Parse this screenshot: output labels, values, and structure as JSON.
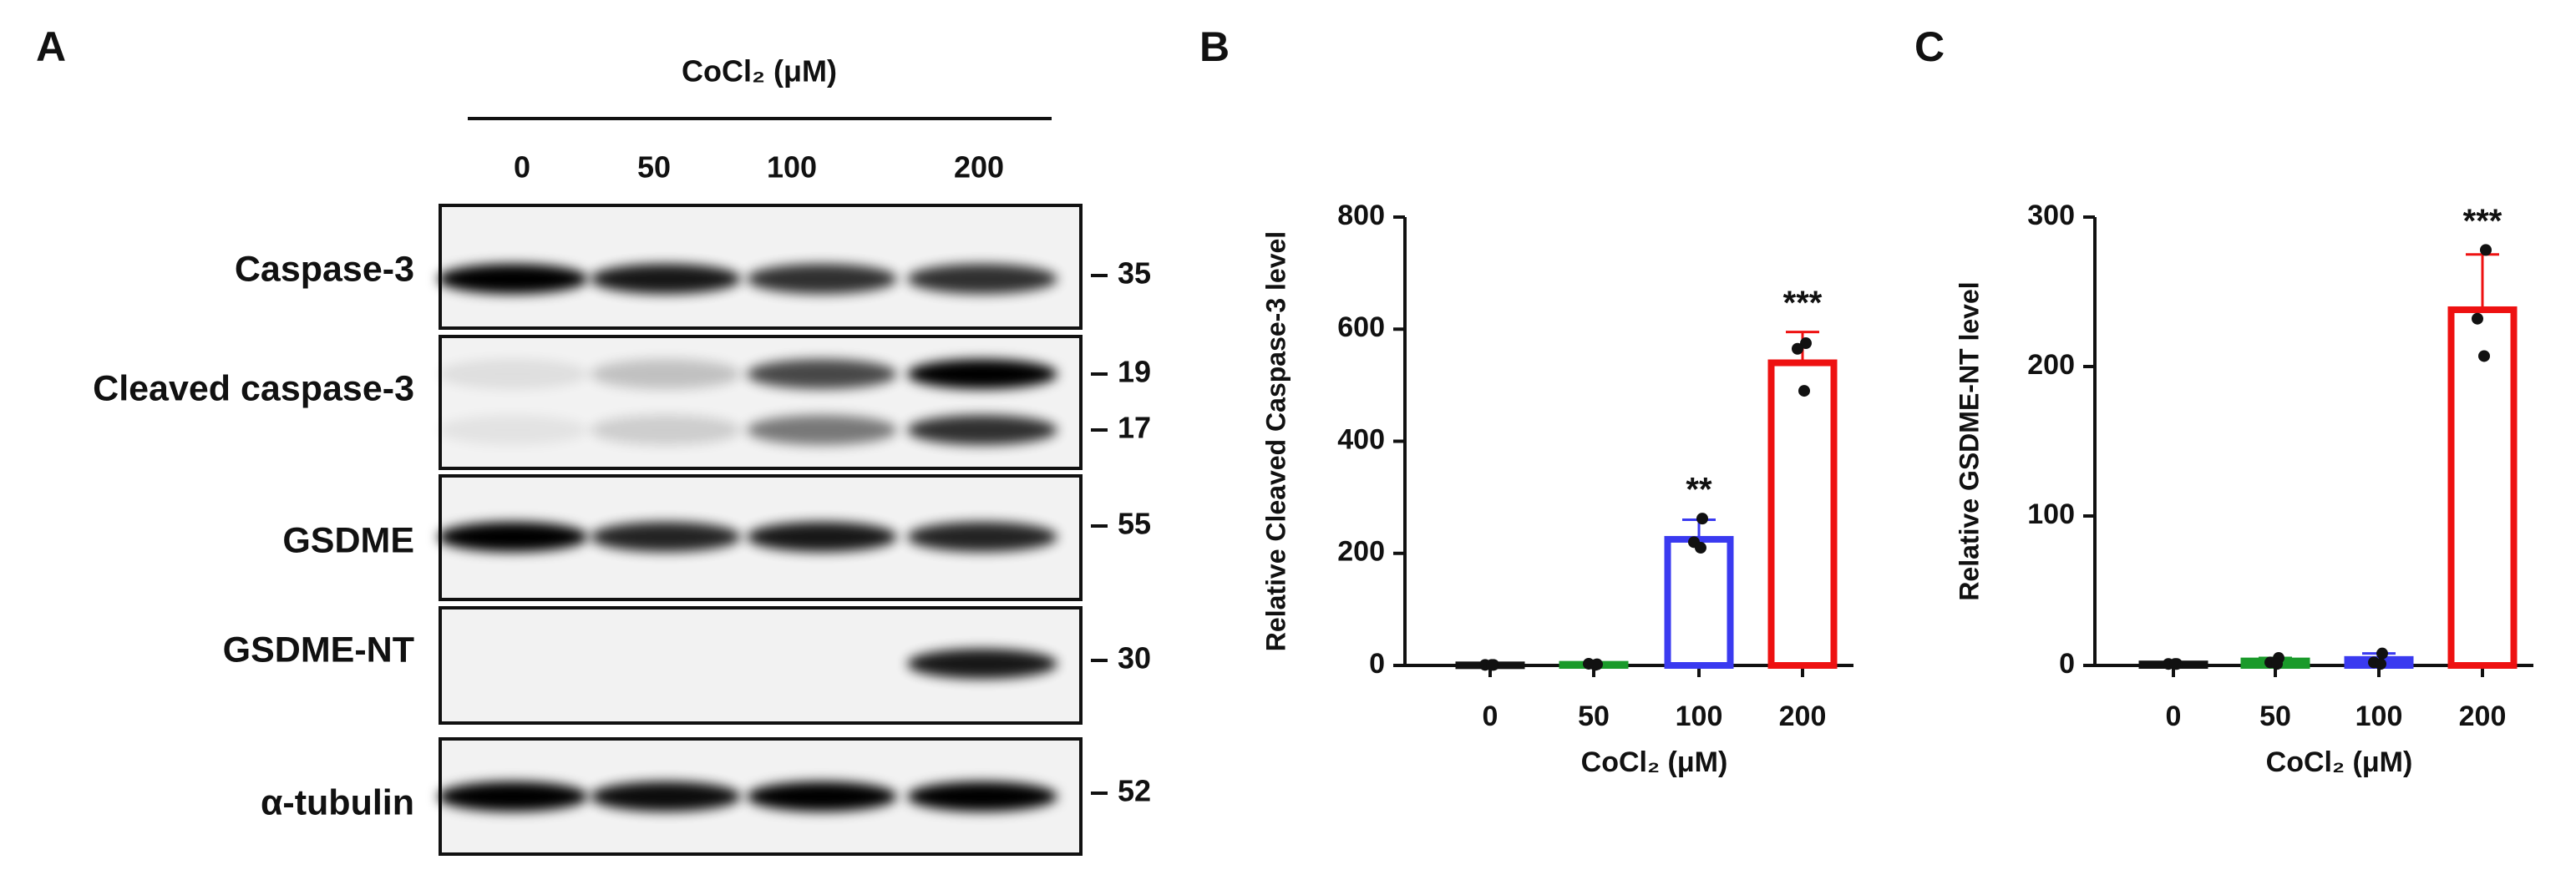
{
  "blot": {
    "panel_label": "A",
    "header": "CoCl₂ (μM)",
    "lanes": [
      "0",
      "50",
      "100",
      "200"
    ],
    "rows": [
      {
        "label": "Caspase-3",
        "markers": [
          35
        ]
      },
      {
        "label": "Cleaved caspase-3",
        "markers": [
          19,
          17
        ]
      },
      {
        "label": "GSDME",
        "markers": [
          55
        ]
      },
      {
        "label": "GSDME-NT",
        "markers": [
          30
        ]
      },
      {
        "label": "α-tubulin",
        "markers": [
          52
        ]
      }
    ]
  },
  "chart_data": [
    {
      "type": "bar",
      "panel_label": "B",
      "y_label": "Relative Cleaved Caspase-3 level",
      "x_label": "CoCl₂ (μM)",
      "categories": [
        "0",
        "50",
        "100",
        "200"
      ],
      "values": [
        1,
        2,
        225,
        540
      ],
      "errors": [
        1,
        1,
        35,
        55
      ],
      "points": [
        [
          1,
          1,
          1
        ],
        [
          2,
          3,
          1
        ],
        [
          262,
          220,
          210
        ],
        [
          575,
          565,
          490
        ]
      ],
      "significance": [
        null,
        null,
        "**",
        "***"
      ],
      "colors": [
        "#111111",
        "#1a9a2a",
        "#3a3af0",
        "#ee1111"
      ],
      "ylim": [
        0,
        800
      ],
      "yticks": [
        0,
        200,
        400,
        600,
        800
      ]
    },
    {
      "type": "bar",
      "panel_label": "C",
      "y_label": "Relative GSDME-NT level",
      "x_label": "CoCl₂ (μM)",
      "categories": [
        "0",
        "50",
        "100",
        "200"
      ],
      "values": [
        1,
        3,
        4,
        238
      ],
      "errors": [
        0.5,
        2,
        4,
        37
      ],
      "points": [
        [
          1,
          1,
          1
        ],
        [
          5,
          2,
          1
        ],
        [
          8,
          2,
          1
        ],
        [
          278,
          232,
          207
        ]
      ],
      "significance": [
        null,
        null,
        null,
        "***"
      ],
      "colors": [
        "#111111",
        "#1a9a2a",
        "#3a3af0",
        "#ee1111"
      ],
      "ylim": [
        0,
        300
      ],
      "yticks": [
        0,
        100,
        200,
        300
      ]
    }
  ]
}
